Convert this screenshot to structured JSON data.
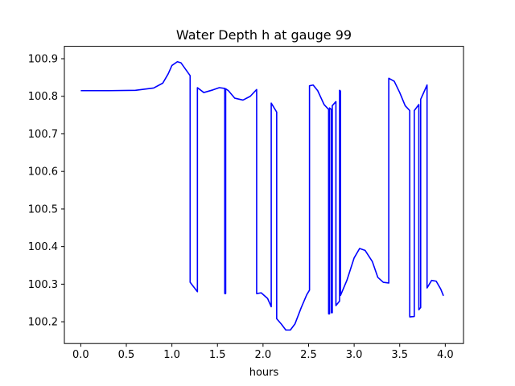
{
  "chart_data": {
    "type": "line",
    "title": "Water Depth h at gauge 99",
    "xlabel": "hours",
    "ylabel": "",
    "xlim": [
      -0.18,
      4.2
    ],
    "ylim": [
      100.142,
      100.933
    ],
    "xticks": [
      0.0,
      0.5,
      1.0,
      1.5,
      2.0,
      2.5,
      3.0,
      3.5,
      4.0
    ],
    "xtick_labels": [
      "0.0",
      "0.5",
      "1.0",
      "1.5",
      "2.0",
      "2.5",
      "3.0",
      "3.5",
      "4.0"
    ],
    "yticks": [
      100.2,
      100.3,
      100.4,
      100.5,
      100.6,
      100.7,
      100.8,
      100.9
    ],
    "ytick_labels": [
      "100.2",
      "100.3",
      "100.4",
      "100.5",
      "100.6",
      "100.7",
      "100.8",
      "100.9"
    ],
    "grid": false,
    "series": [
      {
        "color": "#0000ff",
        "points": [
          [
            0.0,
            100.815
          ],
          [
            0.3,
            100.815
          ],
          [
            0.6,
            100.816
          ],
          [
            0.8,
            100.822
          ],
          [
            0.9,
            100.835
          ],
          [
            0.96,
            100.86
          ],
          [
            1.0,
            100.882
          ],
          [
            1.06,
            100.892
          ],
          [
            1.1,
            100.889
          ],
          [
            1.2,
            100.855
          ],
          [
            1.2,
            100.305
          ],
          [
            1.28,
            100.28
          ],
          [
            1.28,
            100.823
          ],
          [
            1.35,
            100.81
          ],
          [
            1.45,
            100.817
          ],
          [
            1.52,
            100.823
          ],
          [
            1.58,
            100.821
          ],
          [
            1.58,
            100.275
          ],
          [
            1.59,
            100.275
          ],
          [
            1.59,
            100.82
          ],
          [
            1.62,
            100.815
          ],
          [
            1.69,
            100.795
          ],
          [
            1.78,
            100.79
          ],
          [
            1.86,
            100.8
          ],
          [
            1.93,
            100.818
          ],
          [
            1.93,
            100.275
          ],
          [
            1.98,
            100.277
          ],
          [
            2.05,
            100.262
          ],
          [
            2.09,
            100.24
          ],
          [
            2.09,
            100.782
          ],
          [
            2.15,
            100.758
          ],
          [
            2.15,
            100.208
          ],
          [
            2.2,
            100.194
          ],
          [
            2.25,
            100.178
          ],
          [
            2.3,
            100.178
          ],
          [
            2.35,
            100.194
          ],
          [
            2.42,
            100.238
          ],
          [
            2.48,
            100.272
          ],
          [
            2.51,
            100.284
          ],
          [
            2.51,
            100.828
          ],
          [
            2.55,
            100.83
          ],
          [
            2.6,
            100.815
          ],
          [
            2.67,
            100.778
          ],
          [
            2.72,
            100.765
          ],
          [
            2.72,
            100.221
          ],
          [
            2.73,
            100.221
          ],
          [
            2.73,
            100.769
          ],
          [
            2.75,
            100.765
          ],
          [
            2.75,
            100.224
          ],
          [
            2.76,
            100.224
          ],
          [
            2.76,
            100.775
          ],
          [
            2.8,
            100.786
          ],
          [
            2.8,
            100.243
          ],
          [
            2.84,
            100.255
          ],
          [
            2.84,
            100.816
          ],
          [
            2.85,
            100.814
          ],
          [
            2.85,
            100.27
          ],
          [
            2.92,
            100.31
          ],
          [
            3.0,
            100.37
          ],
          [
            3.06,
            100.395
          ],
          [
            3.12,
            100.39
          ],
          [
            3.2,
            100.36
          ],
          [
            3.26,
            100.318
          ],
          [
            3.32,
            100.305
          ],
          [
            3.38,
            100.303
          ],
          [
            3.38,
            100.848
          ],
          [
            3.44,
            100.84
          ],
          [
            3.5,
            100.81
          ],
          [
            3.56,
            100.775
          ],
          [
            3.61,
            100.762
          ],
          [
            3.61,
            100.213
          ],
          [
            3.66,
            100.214
          ],
          [
            3.66,
            100.762
          ],
          [
            3.71,
            100.778
          ],
          [
            3.71,
            100.232
          ],
          [
            3.73,
            100.238
          ],
          [
            3.73,
            100.792
          ],
          [
            3.76,
            100.808
          ],
          [
            3.8,
            100.83
          ],
          [
            3.8,
            100.29
          ],
          [
            3.85,
            100.31
          ],
          [
            3.9,
            100.308
          ],
          [
            3.95,
            100.287
          ],
          [
            3.98,
            100.269
          ]
        ]
      }
    ]
  }
}
